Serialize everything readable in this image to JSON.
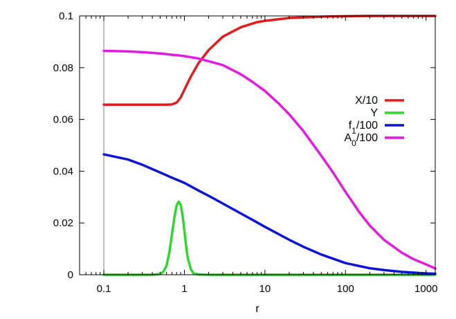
{
  "chart_data": {
    "type": "line",
    "xlabel": "r",
    "ylabel": "",
    "x_scale": "log",
    "xlim": [
      0.05,
      1300
    ],
    "ylim": [
      0,
      0.1
    ],
    "x_ticks": [
      {
        "value": 0.1,
        "label": "0.1"
      },
      {
        "value": 1,
        "label": "1"
      },
      {
        "value": 10,
        "label": "10"
      },
      {
        "value": 100,
        "label": "100"
      },
      {
        "value": 1000,
        "label": "1000"
      }
    ],
    "y_ticks": [
      {
        "value": 0,
        "label": "0"
      },
      {
        "value": 0.02,
        "label": "0.02"
      },
      {
        "value": 0.04,
        "label": "0.04"
      },
      {
        "value": 0.06,
        "label": "0.06"
      },
      {
        "value": 0.08,
        "label": "0.08"
      },
      {
        "value": 0.1,
        "label": "0.1"
      }
    ],
    "vertical_line_x": 0.1,
    "grid": false,
    "legend_position": "right",
    "series": [
      {
        "name": "X/10",
        "legend_main": "X/10",
        "legend_sub": "",
        "legend_rest": "",
        "color": "#e41a1c",
        "x": [
          0.1,
          0.2,
          0.4,
          0.6,
          0.7,
          0.8,
          0.9,
          1.0,
          1.2,
          1.5,
          2,
          3,
          5,
          8,
          10,
          20,
          50,
          100,
          200,
          500,
          1000,
          1300
        ],
        "y": [
          0.0657,
          0.0657,
          0.0657,
          0.0657,
          0.0658,
          0.0665,
          0.0685,
          0.0715,
          0.0765,
          0.0818,
          0.0868,
          0.092,
          0.0956,
          0.0976,
          0.0981,
          0.0992,
          0.0997,
          0.0999,
          0.1,
          0.1,
          0.1,
          0.1
        ]
      },
      {
        "name": "Y",
        "legend_main": "Y",
        "legend_sub": "",
        "legend_rest": "",
        "color": "#2ed62e",
        "x": [
          0.1,
          0.4,
          0.5,
          0.55,
          0.6,
          0.65,
          0.7,
          0.75,
          0.8,
          0.85,
          0.9,
          0.95,
          1.0,
          1.05,
          1.1,
          1.2,
          1.3,
          1.5,
          2,
          10,
          100,
          1300
        ],
        "y": [
          0,
          0,
          0.0003,
          0.0012,
          0.0035,
          0.0085,
          0.0155,
          0.022,
          0.0268,
          0.0282,
          0.027,
          0.0228,
          0.017,
          0.011,
          0.0065,
          0.0022,
          0.0005,
          0.0001,
          0,
          0,
          0,
          0
        ]
      },
      {
        "name": "f_1/100",
        "legend_main": "f",
        "legend_sub": "1",
        "legend_rest": "/100",
        "color": "#0a14d6",
        "x": [
          0.1,
          0.2,
          0.3,
          0.5,
          0.7,
          1,
          1.5,
          2,
          3,
          5,
          7,
          10,
          20,
          30,
          50,
          100,
          200,
          300,
          500,
          1000,
          1300
        ],
        "y": [
          0.0465,
          0.0445,
          0.0425,
          0.0395,
          0.0375,
          0.0355,
          0.0325,
          0.0305,
          0.0275,
          0.0237,
          0.0212,
          0.0185,
          0.0135,
          0.0108,
          0.0078,
          0.0045,
          0.0025,
          0.0018,
          0.0011,
          0.0005,
          0.0004
        ]
      },
      {
        "name": "A_0/100",
        "legend_main": "A",
        "legend_sub": "0",
        "legend_rest": "/100",
        "color": "#e21ae2",
        "x": [
          0.1,
          0.2,
          0.3,
          0.5,
          0.7,
          1,
          1.5,
          2,
          3,
          5,
          7,
          10,
          15,
          20,
          30,
          50,
          70,
          100,
          150,
          200,
          300,
          500,
          700,
          1000,
          1300
        ],
        "y": [
          0.0865,
          0.0863,
          0.086,
          0.0855,
          0.085,
          0.0845,
          0.0835,
          0.0825,
          0.081,
          0.0775,
          0.0745,
          0.071,
          0.066,
          0.062,
          0.0555,
          0.046,
          0.0395,
          0.032,
          0.024,
          0.019,
          0.0135,
          0.0085,
          0.006,
          0.004,
          0.0024
        ]
      }
    ]
  }
}
